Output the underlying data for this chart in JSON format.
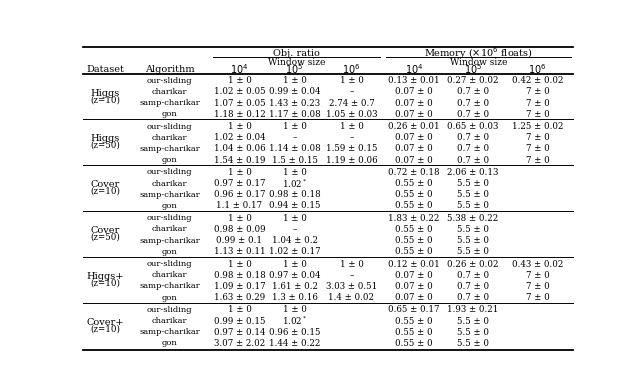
{
  "sections": [
    {
      "dataset_line1": "Higgs",
      "dataset_line2": "(z=10)",
      "rows": [
        [
          "our-sliding",
          "1 ± 0",
          "1 ± 0",
          "1 ± 0",
          "0.13 ± 0.01",
          "0.27 ± 0.02",
          "0.42 ± 0.02"
        ],
        [
          "charikar",
          "1.02 ± 0.05",
          "0.99 ± 0.04",
          "–",
          "0.07 ± 0",
          "0.7 ± 0",
          "7 ± 0"
        ],
        [
          "samp-charikar",
          "1.07 ± 0.05",
          "1.43 ± 0.23",
          "2.74 ± 0.7",
          "0.07 ± 0",
          "0.7 ± 0",
          "7 ± 0"
        ],
        [
          "gon",
          "1.18 ± 0.12",
          "1.17 ± 0.08",
          "1.05 ± 0.03",
          "0.07 ± 0",
          "0.7 ± 0",
          "7 ± 0"
        ]
      ]
    },
    {
      "dataset_line1": "Higgs",
      "dataset_line2": "(z=50)",
      "rows": [
        [
          "our-sliding",
          "1 ± 0",
          "1 ± 0",
          "1 ± 0",
          "0.26 ± 0.01",
          "0.65 ± 0.03",
          "1.25 ± 0.02"
        ],
        [
          "charikar",
          "1.02 ± 0.04",
          "–",
          "–",
          "0.07 ± 0",
          "0.7 ± 0",
          "7 ± 0"
        ],
        [
          "samp-charikar",
          "1.04 ± 0.06",
          "1.14 ± 0.08",
          "1.59 ± 0.15",
          "0.07 ± 0",
          "0.7 ± 0",
          "7 ± 0"
        ],
        [
          "gon",
          "1.54 ± 0.19",
          "1.5 ± 0.15",
          "1.19 ± 0.06",
          "0.07 ± 0",
          "0.7 ± 0",
          "7 ± 0"
        ]
      ]
    },
    {
      "dataset_line1": "Cover",
      "dataset_line2": "(z=10)",
      "rows": [
        [
          "our-sliding",
          "1 ± 0",
          "1 ± 0",
          "",
          "0.72 ± 0.18",
          "2.06 ± 0.13",
          ""
        ],
        [
          "charikar",
          "0.97 ± 0.17",
          "1.02*",
          "",
          "0.55 ± 0",
          "5.5 ± 0",
          ""
        ],
        [
          "samp-charikar",
          "0.96 ± 0.17",
          "0.98 ± 0.18",
          "",
          "0.55 ± 0",
          "5.5 ± 0",
          ""
        ],
        [
          "gon",
          "1.1 ± 0.17",
          "0.94 ± 0.15",
          "",
          "0.55 ± 0",
          "5.5 ± 0",
          ""
        ]
      ]
    },
    {
      "dataset_line1": "Cover",
      "dataset_line2": "(z=50)",
      "rows": [
        [
          "our-sliding",
          "1 ± 0",
          "1 ± 0",
          "",
          "1.83 ± 0.22",
          "5.38 ± 0.22",
          ""
        ],
        [
          "charikar",
          "0.98 ± 0.09",
          "–",
          "",
          "0.55 ± 0",
          "5.5 ± 0",
          ""
        ],
        [
          "samp-charikar",
          "0.99 ± 0.1",
          "1.04 ± 0.2",
          "",
          "0.55 ± 0",
          "5.5 ± 0",
          ""
        ],
        [
          "gon",
          "1.13 ± 0.11",
          "1.02 ± 0.17",
          "",
          "0.55 ± 0",
          "5.5 ± 0",
          ""
        ]
      ]
    },
    {
      "dataset_line1": "Higgs+",
      "dataset_line2": "(z=10)",
      "rows": [
        [
          "our-sliding",
          "1 ± 0",
          "1 ± 0",
          "1 ± 0",
          "0.12 ± 0.01",
          "0.26 ± 0.02",
          "0.43 ± 0.02"
        ],
        [
          "charikar",
          "0.98 ± 0.18",
          "0.97 ± 0.04",
          "–",
          "0.07 ± 0",
          "0.7 ± 0",
          "7 ± 0"
        ],
        [
          "samp-charikar",
          "1.09 ± 0.17",
          "1.61 ± 0.2",
          "3.03 ± 0.51",
          "0.07 ± 0",
          "0.7 ± 0",
          "7 ± 0"
        ],
        [
          "gon",
          "1.63 ± 0.29",
          "1.3 ± 0.16",
          "1.4 ± 0.02",
          "0.07 ± 0",
          "0.7 ± 0",
          "7 ± 0"
        ]
      ]
    },
    {
      "dataset_line1": "Cover+",
      "dataset_line2": "(z=10)",
      "rows": [
        [
          "our-sliding",
          "1 ± 0",
          "1 ± 0",
          "",
          "0.65 ± 0.17",
          "1.93 ± 0.21",
          ""
        ],
        [
          "charikar",
          "0.99 ± 0.15",
          "1.02*",
          "",
          "0.55 ± 0",
          "5.5 ± 0",
          ""
        ],
        [
          "samp-charikar",
          "0.97 ± 0.14",
          "0.96 ± 0.15",
          "",
          "0.55 ± 0",
          "5.5 ± 0",
          ""
        ],
        [
          "gon",
          "3.07 ± 2.02",
          "1.44 ± 0.22",
          "",
          "0.55 ± 0",
          "5.5 ± 0",
          ""
        ]
      ]
    }
  ],
  "col_labels": [
    "Dataset",
    "Algorithm",
    "10^4",
    "10^5",
    "10^6",
    "10^4",
    "10^5",
    "10^6"
  ],
  "fs_header": 7.0,
  "fs_data": 6.2,
  "fs_dataset": 7.0,
  "fs_algo": 6.0
}
